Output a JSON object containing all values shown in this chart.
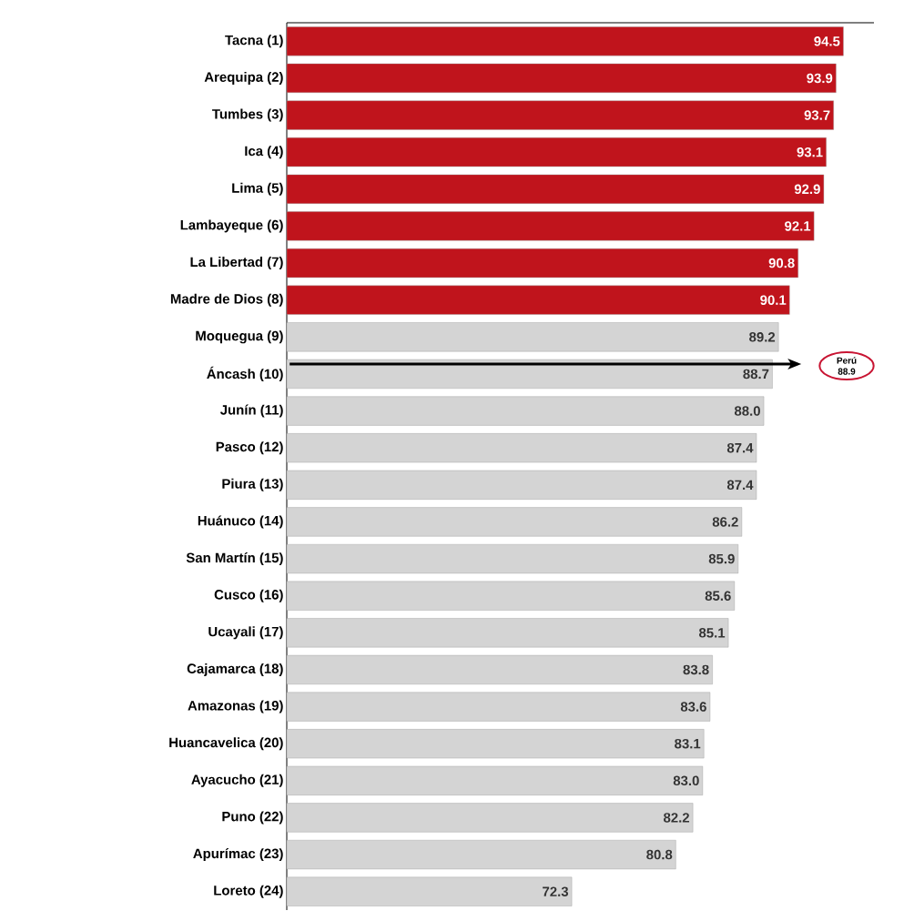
{
  "chart_data": {
    "type": "bar",
    "orientation": "horizontal",
    "categories": [
      "Tacna (1)",
      "Arequipa (2)",
      "Tumbes (3)",
      "Ica (4)",
      "Lima (5)",
      "Lambayeque (6)",
      "La Libertad (7)",
      "Madre de Dios (8)",
      "Moquegua (9)",
      "Áncash (10)",
      "Junín (11)",
      "Pasco (12)",
      "Piura (13)",
      "Huánuco (14)",
      "San Martín (15)",
      "Cusco (16)",
      "Ucayali (17)",
      "Cajamarca (18)",
      "Amazonas (19)",
      "Huancavelica (20)",
      "Ayacucho (21)",
      "Puno (22)",
      "Apurímac (23)",
      "Loreto (24)"
    ],
    "values": [
      94.5,
      93.9,
      93.7,
      93.1,
      92.9,
      92.1,
      90.8,
      90.1,
      89.2,
      88.7,
      88.0,
      87.4,
      87.4,
      86.2,
      85.9,
      85.6,
      85.1,
      83.8,
      83.6,
      83.1,
      83.0,
      82.2,
      80.8,
      72.3
    ],
    "colors": [
      "#c0141c",
      "#c0141c",
      "#c0141c",
      "#c0141c",
      "#c0141c",
      "#c0141c",
      "#c0141c",
      "#c0141c",
      "#d4d4d4",
      "#d4d4d4",
      "#d4d4d4",
      "#d4d4d4",
      "#d4d4d4",
      "#d4d4d4",
      "#d4d4d4",
      "#d4d4d4",
      "#d4d4d4",
      "#d4d4d4",
      "#d4d4d4",
      "#d4d4d4",
      "#d4d4d4",
      "#d4d4d4",
      "#d4d4d4",
      "#d4d4d4"
    ],
    "value_labels": [
      "94.5",
      "93.9",
      "93.7",
      "93.1",
      "92.9",
      "92.1",
      "90.8",
      "90.1",
      "89.2",
      "88.7",
      "88.0",
      "87.4",
      "87.4",
      "86.2",
      "85.9",
      "85.6",
      "85.1",
      "83.8",
      "83.6",
      "83.1",
      "83.0",
      "82.2",
      "80.8",
      "72.3"
    ],
    "xlim": [
      49,
      97
    ],
    "tick_labels": "y",
    "annotations": [
      "Perú 88.9"
    ]
  }
}
